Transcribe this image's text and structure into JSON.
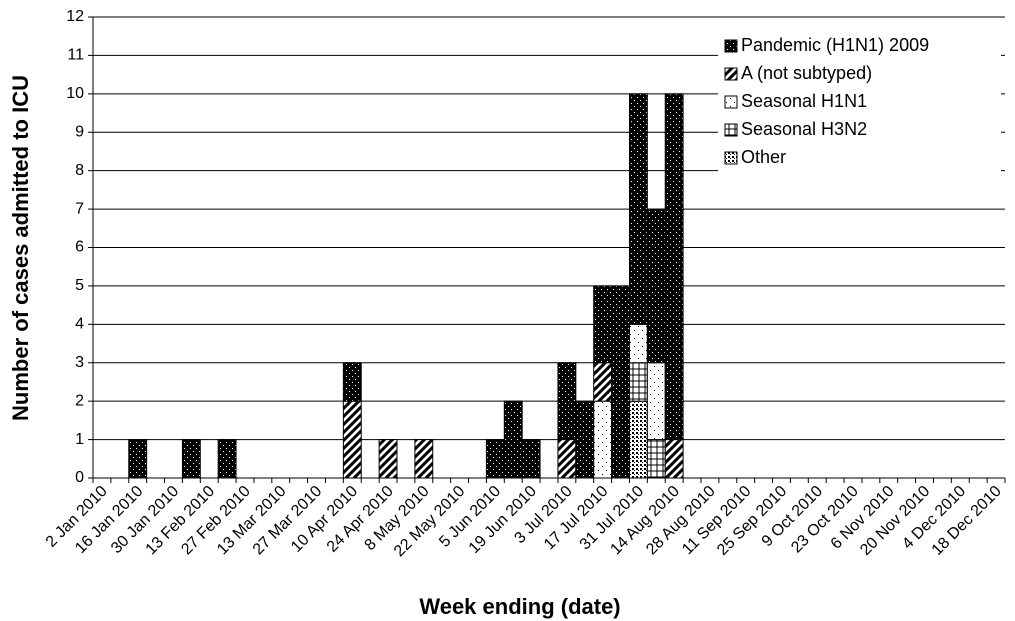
{
  "chart_data": {
    "type": "bar",
    "stacked": true,
    "y_label": "Number of cases admitted to ICU",
    "x_label": "Week ending (date)",
    "categories": [
      "2 Jan 2010",
      null,
      "16 Jan 2010",
      null,
      "30 Jan 2010",
      null,
      "13 Feb 2010",
      null,
      "27 Feb 2010",
      null,
      "13 Mar 2010",
      null,
      "27 Mar 2010",
      null,
      "10 Apr 2010",
      null,
      "24 Apr 2010",
      null,
      "8 May 2010",
      null,
      "22 May 2010",
      null,
      "5 Jun 2010",
      null,
      "19 Jun 2010",
      null,
      "3 Jul 2010",
      null,
      "17 Jul 2010",
      null,
      "31 Jul 2010",
      null,
      "14 Aug 2010",
      null,
      "28 Aug 2010",
      null,
      "11 Sep 2010",
      null,
      "25 Sep 2010",
      null,
      "9 Oct 2010",
      null,
      "23 Oct 2010",
      null,
      "6 Nov 2010",
      null,
      "20 Nov 2010",
      null,
      "4 Dec 2010",
      null,
      "18 Dec 2010"
    ],
    "series": [
      {
        "name": "Pandemic (H1N1) 2009",
        "values": [
          0,
          0,
          1,
          0,
          0,
          1,
          0,
          1,
          0,
          0,
          0,
          0,
          0,
          0,
          1,
          0,
          0,
          0,
          0,
          0,
          0,
          0,
          1,
          2,
          1,
          0,
          2,
          2,
          2,
          5,
          6,
          4,
          9,
          0,
          0,
          0,
          0,
          0,
          0,
          0,
          0,
          0,
          0,
          0,
          0,
          0,
          0,
          0,
          0,
          0,
          0
        ]
      },
      {
        "name": "A (not subtyped)",
        "values": [
          0,
          0,
          0,
          0,
          0,
          0,
          0,
          0,
          0,
          0,
          0,
          0,
          0,
          0,
          2,
          0,
          1,
          0,
          1,
          0,
          0,
          0,
          0,
          0,
          0,
          0,
          1,
          0,
          1,
          0,
          0,
          0,
          1,
          0,
          0,
          0,
          0,
          0,
          0,
          0,
          0,
          0,
          0,
          0,
          0,
          0,
          0,
          0,
          0,
          0,
          0
        ]
      },
      {
        "name": "Seasonal H1N1",
        "values": [
          0,
          0,
          0,
          0,
          0,
          0,
          0,
          0,
          0,
          0,
          0,
          0,
          0,
          0,
          0,
          0,
          0,
          0,
          0,
          0,
          0,
          0,
          0,
          0,
          0,
          0,
          0,
          0,
          2,
          0,
          1,
          2,
          0,
          0,
          0,
          0,
          0,
          0,
          0,
          0,
          0,
          0,
          0,
          0,
          0,
          0,
          0,
          0,
          0,
          0,
          0
        ]
      },
      {
        "name": "Seasonal H3N2",
        "values": [
          0,
          0,
          0,
          0,
          0,
          0,
          0,
          0,
          0,
          0,
          0,
          0,
          0,
          0,
          0,
          0,
          0,
          0,
          0,
          0,
          0,
          0,
          0,
          0,
          0,
          0,
          0,
          0,
          0,
          0,
          1,
          1,
          0,
          0,
          0,
          0,
          0,
          0,
          0,
          0,
          0,
          0,
          0,
          0,
          0,
          0,
          0,
          0,
          0,
          0,
          0
        ]
      },
      {
        "name": "Other",
        "values": [
          0,
          0,
          0,
          0,
          0,
          0,
          0,
          0,
          0,
          0,
          0,
          0,
          0,
          0,
          0,
          0,
          0,
          0,
          0,
          0,
          0,
          0,
          0,
          0,
          0,
          0,
          0,
          0,
          0,
          0,
          2,
          0,
          0,
          0,
          0,
          0,
          0,
          0,
          0,
          0,
          0,
          0,
          0,
          0,
          0,
          0,
          0,
          0,
          0,
          0,
          0
        ]
      }
    ],
    "ylim": [
      0,
      12
    ],
    "yticks": [
      0,
      1,
      2,
      3,
      4,
      5,
      6,
      7,
      8,
      9,
      10,
      11,
      12
    ],
    "grid": true,
    "legend": "top-right"
  }
}
